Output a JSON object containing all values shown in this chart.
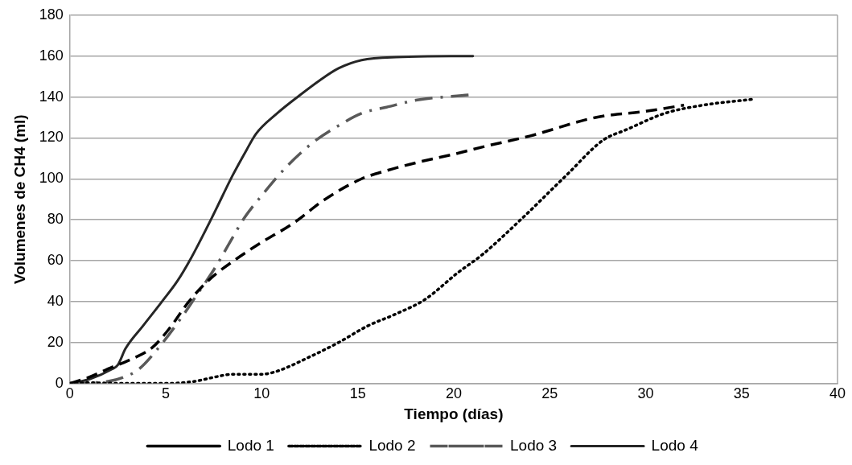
{
  "chart_data": {
    "type": "line",
    "xlabel": "Tiempo (días)",
    "ylabel": "Volumenes de CH4 (ml)",
    "xlim": [
      0,
      40
    ],
    "xticks": [
      0,
      5,
      10,
      15,
      20,
      25,
      30,
      35,
      40
    ],
    "ylim": [
      0,
      180
    ],
    "yticks": [
      0,
      20,
      40,
      60,
      80,
      100,
      120,
      140,
      160,
      180
    ],
    "grid": "y",
    "legend": "bottom",
    "marker": "none",
    "series": [
      {
        "name": "Lodo 1",
        "color": "#000000",
        "line_style": "dashed",
        "x": [
          0,
          1,
          2.2,
          3,
          4.3,
          5.2,
          6.2,
          7.3,
          8.7,
          10,
          11.6,
          13.3,
          15.2,
          16.5,
          18.1,
          20,
          21.7,
          24,
          27.4,
          30,
          32
        ],
        "values": [
          0,
          3,
          8,
          11,
          17.6,
          27,
          40,
          51,
          61,
          69,
          78,
          90,
          100,
          104,
          108,
          112,
          116,
          121,
          130,
          133,
          136
        ]
      },
      {
        "name": "Lodo 2",
        "color": "#000000",
        "line_style": "dotted",
        "x": [
          0,
          1,
          3,
          5,
          6.5,
          7.5,
          8.5,
          10,
          10.8,
          12.5,
          14,
          15.5,
          17,
          18.5,
          20.2,
          21.5,
          23.6,
          25.9,
          27.8,
          29,
          31,
          33,
          35.7
        ],
        "values": [
          0,
          0.3,
          0,
          0,
          1,
          3,
          4.5,
          4.5,
          6,
          13,
          20,
          28,
          34,
          41,
          54,
          63,
          81,
          102,
          119,
          124,
          132,
          136,
          139
        ]
      },
      {
        "name": "Lodo 3",
        "color": "#595959",
        "line_style": "dashdot",
        "x": [
          0,
          2,
          2.8,
          3.6,
          4.5,
          5.8,
          6.6,
          7.6,
          8.4,
          9.1,
          10.1,
          11.3,
          12.7,
          14,
          15.2,
          16.5,
          18.1,
          20.8
        ],
        "values": [
          0,
          1,
          3,
          7,
          16,
          32,
          43,
          57,
          70,
          81,
          93,
          106,
          118,
          126,
          132,
          135,
          138.5,
          141
        ]
      },
      {
        "name": "Lodo 4",
        "color": "#262626",
        "line_style": "solid",
        "x": [
          0,
          1,
          2.2,
          2.5,
          2.9,
          3.8,
          4.8,
          5.6,
          6.3,
          7.4,
          8.5,
          9.2,
          9.7,
          10.8,
          12,
          13,
          14,
          15.2,
          17,
          21
        ],
        "values": [
          0,
          2,
          7,
          9,
          17,
          28,
          40,
          50,
          61,
          81,
          102,
          114,
          122,
          132,
          141,
          148,
          154,
          158,
          159.5,
          160
        ]
      }
    ]
  }
}
